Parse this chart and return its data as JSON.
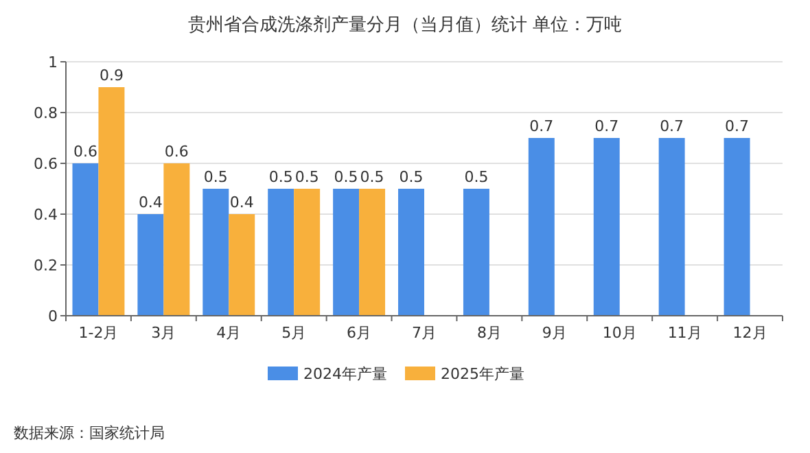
{
  "chart_data": {
    "type": "bar",
    "title": "贵州省合成洗涤剂产量分月（当月值）统计  单位：万吨",
    "categories": [
      "1-2月",
      "3月",
      "4月",
      "5月",
      "6月",
      "7月",
      "8月",
      "9月",
      "10月",
      "11月",
      "12月"
    ],
    "series": [
      {
        "name": "2024年产量",
        "color": "#4a8ee6",
        "values": [
          0.6,
          0.4,
          0.5,
          0.5,
          0.5,
          0.5,
          0.5,
          0.7,
          0.7,
          0.7,
          0.7
        ]
      },
      {
        "name": "2025年产量",
        "color": "#f8b03c",
        "values": [
          0.9,
          0.6,
          0.4,
          0.5,
          0.5,
          null,
          null,
          null,
          null,
          null,
          null
        ]
      }
    ],
    "ylim": [
      0,
      1
    ],
    "yticks": [
      0,
      0.2,
      0.4,
      0.6,
      0.8,
      1
    ],
    "grid": "y",
    "legend": "bottom",
    "data_labels": true,
    "annotations": [
      "数据来源：国家统计局"
    ]
  }
}
